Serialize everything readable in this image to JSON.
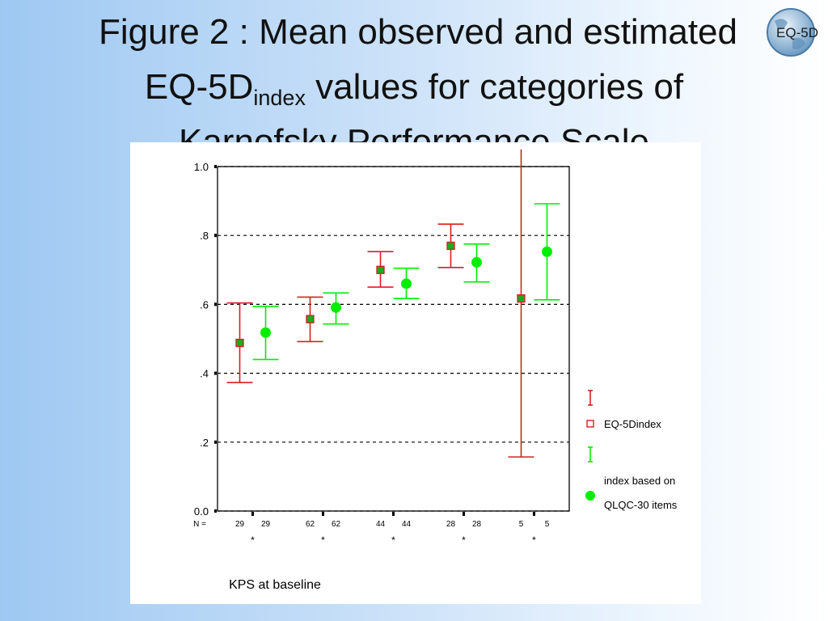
{
  "title": {
    "line1": "Figure 2 : Mean observed and estimated",
    "line2_main": "EQ-5D",
    "line2_sub": "index",
    "line2_rest": " values for categories of",
    "line3": "Karnofsky Performance Scale"
  },
  "logo": {
    "text": "EQ-5D",
    "icon": "globe-icon"
  },
  "colors": {
    "observed": "#d42020",
    "estimated": "#00ee00",
    "marker_fill": "#1faa1f"
  },
  "chart_data": {
    "type": "errorbar",
    "xlabel": "KPS at baseline",
    "ylim": [
      0,
      1.0
    ],
    "y_ticks": [
      {
        "value": 0.0,
        "label": "0.0"
      },
      {
        "value": 0.2,
        "label": ".2"
      },
      {
        "value": 0.4,
        "label": ".4"
      },
      {
        "value": 0.6,
        "label": ".6"
      },
      {
        "value": 0.8,
        "label": ".8"
      },
      {
        "value": 1.0,
        "label": "1.0"
      }
    ],
    "grid": "horizontal dashed",
    "n_label": "N =",
    "category_labels": [
      "*",
      "*",
      "*",
      "*",
      "*"
    ],
    "series": [
      {
        "name": "EQ-5Dindex",
        "marker": "square",
        "n": [
          29,
          62,
          44,
          28,
          5
        ],
        "mean": [
          0.488,
          0.557,
          0.7,
          0.77,
          0.617
        ],
        "lower": [
          0.373,
          0.492,
          0.65,
          0.707,
          0.157
        ],
        "upper": [
          0.604,
          0.621,
          0.753,
          0.833,
          1.05
        ]
      },
      {
        "name": "index based on QLQC-30 items",
        "marker": "circle",
        "n": [
          29,
          62,
          44,
          28,
          5
        ],
        "mean": [
          0.518,
          0.591,
          0.66,
          0.722,
          0.753
        ],
        "lower": [
          0.44,
          0.543,
          0.617,
          0.665,
          0.613
        ],
        "upper": [
          0.594,
          0.633,
          0.705,
          0.775,
          0.892
        ]
      }
    ],
    "legend": {
      "position": "right",
      "entries": [
        {
          "label_lines": [
            "EQ-5Dindex"
          ]
        },
        {
          "label_lines": [
            "index based on",
            "QLQC-30 items"
          ]
        }
      ]
    }
  }
}
